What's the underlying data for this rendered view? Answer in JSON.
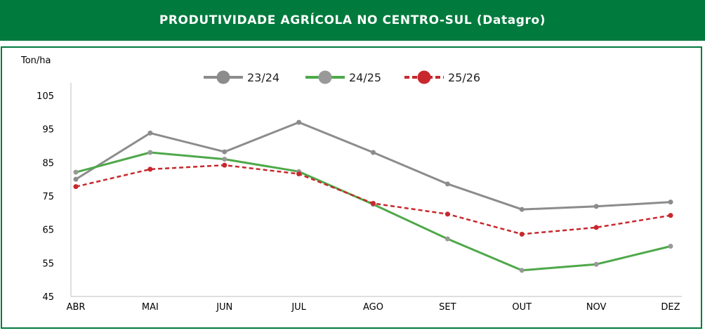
{
  "header": {
    "title": "PRODUTIVIDADE AGRÍCOLA NO CENTRO-SUL (Datagro)"
  },
  "chart_data": {
    "type": "line",
    "title": "PRODUTIVIDADE AGRÍCOLA NO CENTRO-SUL (Datagro)",
    "ylabel": "Ton/ha",
    "xlabel": "",
    "categories": [
      "ABR",
      "MAI",
      "JUN",
      "JUL",
      "AGO",
      "SET",
      "OUT",
      "NOV",
      "DEZ"
    ],
    "ylim": [
      45,
      105
    ],
    "yticks": [
      45,
      55,
      65,
      75,
      85,
      95,
      105
    ],
    "grid": false,
    "legend_position": "top",
    "series": [
      {
        "name": "23/24",
        "color": "#8c8c8c",
        "dashed": false,
        "values": [
          80,
          93.8,
          88.2,
          97,
          88,
          78.6,
          71,
          71.9,
          73.2
        ]
      },
      {
        "name": "24/25",
        "color": "#4ea84a",
        "dashed": false,
        "values": [
          82.1,
          88,
          86,
          82.3,
          72.5,
          62.2,
          52.8,
          54.6,
          60
        ]
      },
      {
        "name": "25/26",
        "color": "#c8282d",
        "dashed": true,
        "values": [
          77.8,
          83,
          84.2,
          81.6,
          72.8,
          69.6,
          63.6,
          65.6,
          69.2
        ]
      }
    ]
  }
}
